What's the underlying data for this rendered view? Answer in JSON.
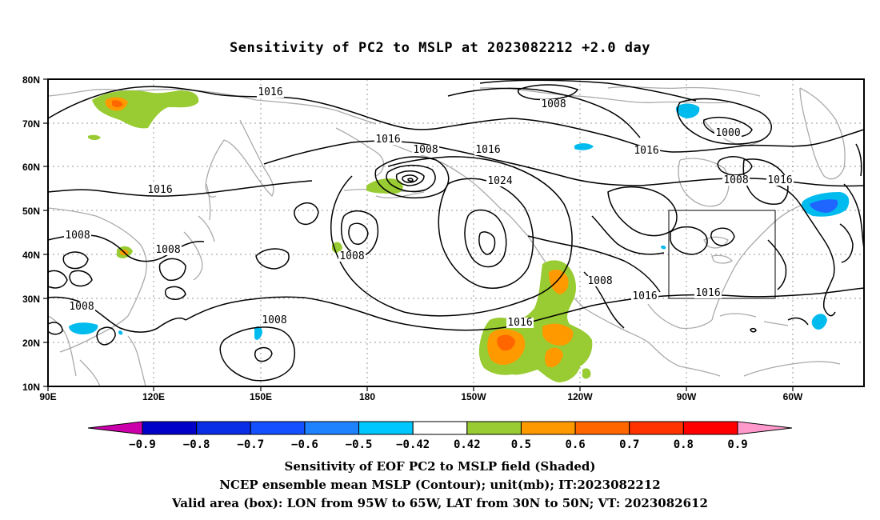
{
  "title": "Sensitivity of PC2 to MSLP at 2023082212 +2.0 day",
  "map": {
    "lon_labels": [
      "90E",
      "120E",
      "150E",
      "180",
      "150W",
      "120W",
      "90W",
      "60W"
    ],
    "lat_labels": [
      "80N",
      "70N",
      "60N",
      "50N",
      "40N",
      "30N",
      "20N",
      "10N"
    ],
    "box": {
      "lon_west": "95W",
      "lon_east": "65W",
      "lat_south": "30N",
      "lat_north": "50N"
    },
    "contour_labels": [
      {
        "text": "1016"
      },
      {
        "text": "1008"
      },
      {
        "text": "1000"
      },
      {
        "text": "1016"
      },
      {
        "text": "1008"
      },
      {
        "text": "1016"
      },
      {
        "text": "1016"
      },
      {
        "text": "1024"
      },
      {
        "text": "1016"
      },
      {
        "text": "1008"
      },
      {
        "text": "1016"
      },
      {
        "text": "1008"
      },
      {
        "text": "1008"
      },
      {
        "text": "1008"
      },
      {
        "text": "1008"
      },
      {
        "text": "1008"
      },
      {
        "text": "1016"
      },
      {
        "text": "1008"
      },
      {
        "text": "1016"
      },
      {
        "text": "1016"
      }
    ],
    "colors": {
      "coast": "#aaaaaa",
      "contour": "#000000",
      "green": "#99cc33",
      "orange": "#ff9900",
      "dark_orange": "#ff6600",
      "cyan": "#00bbee",
      "blue": "#1e66ff"
    }
  },
  "colorbar": {
    "labels": [
      "-0.9",
      "-0.8",
      "-0.7",
      "-0.6",
      "-0.5",
      "-0.42",
      "0.42",
      "0.5",
      "0.6",
      "0.7",
      "0.8",
      "0.9"
    ],
    "colors": [
      "#0000c8",
      "#0a2ee6",
      "#1450ff",
      "#1e82ff",
      "#00c8ff",
      "#ffffff",
      "#99cc33",
      "#ff9900",
      "#ff6600",
      "#ff3300",
      "#ff0000"
    ],
    "left_triangle_color": "#cc00aa",
    "right_triangle_color": "#ff99cc"
  },
  "captions": {
    "line1": "Sensitivity of EOF PC2 to MSLP field (Shaded)",
    "line2": "NCEP ensemble mean MSLP (Contour); unit(mb); IT:2023082212",
    "line3": "Valid area (box): LON from 95W to 65W, LAT from 30N to 50N; VT: 2023082612"
  }
}
